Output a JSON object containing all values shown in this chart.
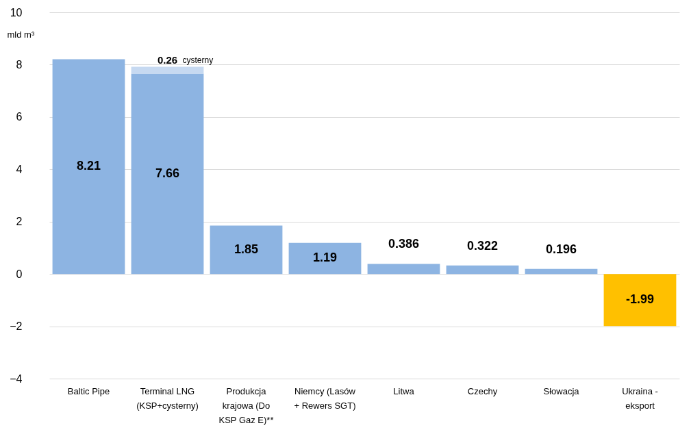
{
  "chart_data": {
    "type": "bar",
    "stacked": true,
    "ylabel": "mld m³",
    "categories": [
      "Baltic Pipe",
      "Terminal LNG (KSP+cysterny)",
      "Produkcja krajowa (Do KSP Gaz E)**",
      "Niemcy (Lasów + Rewers SGT)",
      "Litwa",
      "Czechy",
      "Słowacja",
      "Ukraina - eksport"
    ],
    "series": [
      {
        "colors": [
          "#8db4e2",
          "#8db4e2",
          "#8db4e2",
          "#8db4e2",
          "#8db4e2",
          "#8db4e2",
          "#8db4e2",
          "#ffc000"
        ],
        "values": [
          8.21,
          7.66,
          1.85,
          1.19,
          0.386,
          0.322,
          0.196,
          -1.99
        ]
      },
      {
        "name": "cysterny",
        "color": "#c6d9f1",
        "values": [
          null,
          0.26,
          null,
          null,
          null,
          null,
          null,
          null
        ]
      }
    ],
    "ylim": [
      -4,
      10
    ],
    "yticks": [
      -4,
      -2,
      0,
      2,
      4,
      6,
      8,
      10
    ],
    "grid": "y",
    "data_labels": true
  }
}
